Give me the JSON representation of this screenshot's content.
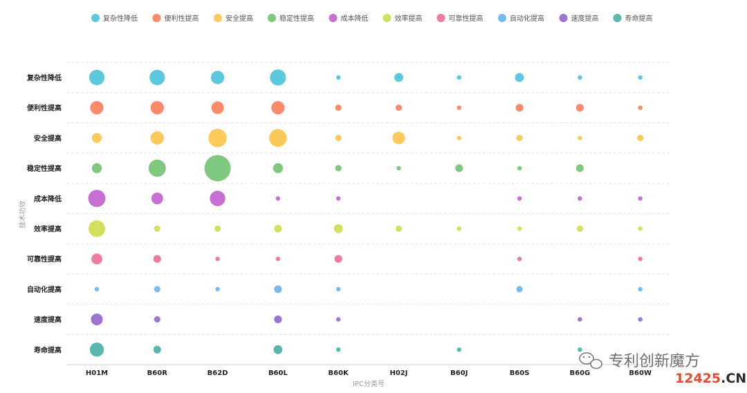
{
  "chart_data": {
    "type": "scatter",
    "variant": "bubble-matrix",
    "categories_x": [
      "H01M",
      "B60R",
      "B62D",
      "B60L",
      "B60K",
      "H02J",
      "B60J",
      "B60S",
      "B60G",
      "B60W"
    ],
    "categories_y": [
      "复杂性降低",
      "便利性提高",
      "安全提高",
      "稳定性提高",
      "成本降低",
      "效率提高",
      "可靠性提高",
      "自动化提高",
      "速度提高",
      "寿命提高"
    ],
    "xlabel": "IPC分类号",
    "ylabel": "技术功效",
    "legend_position": "top",
    "grid": "horizontal dashed",
    "series": [
      {
        "name": "复杂性降低",
        "color": "#5bc8dc",
        "values": [
          12,
          12,
          9,
          13,
          1,
          4,
          1,
          4,
          1,
          1
        ]
      },
      {
        "name": "便利性提高",
        "color": "#fc8b6b",
        "values": [
          9,
          9,
          8,
          9,
          2,
          2,
          1,
          3,
          3,
          1
        ]
      },
      {
        "name": "安全提高",
        "color": "#fcca5b",
        "values": [
          5,
          9,
          17,
          16,
          2,
          8,
          1,
          2,
          1,
          2
        ]
      },
      {
        "name": "稳定性提高",
        "color": "#7ec97e",
        "values": [
          5,
          15,
          35,
          5,
          2,
          1,
          3,
          1,
          3,
          0
        ]
      },
      {
        "name": "成本降低",
        "color": "#c76fd3",
        "values": [
          15,
          7,
          12,
          1,
          1,
          0,
          0,
          1,
          1,
          1
        ]
      },
      {
        "name": "效率提高",
        "color": "#d4e05c",
        "values": [
          14,
          2,
          2,
          3,
          4,
          2,
          1,
          1,
          2,
          1
        ]
      },
      {
        "name": "可靠性提高",
        "color": "#ef7b9f",
        "values": [
          6,
          3,
          1,
          1,
          3,
          0,
          0,
          1,
          0,
          1
        ]
      },
      {
        "name": "自动化提高",
        "color": "#76bbee",
        "values": [
          1,
          2,
          1,
          3,
          1,
          0,
          0,
          2,
          0,
          1
        ]
      },
      {
        "name": "速度提高",
        "color": "#9d74d3",
        "values": [
          7,
          2,
          0,
          3,
          1,
          0,
          0,
          0,
          1,
          1
        ]
      },
      {
        "name": "寿命提高",
        "color": "#59b7ad",
        "values": [
          10,
          3,
          0,
          4,
          1,
          0,
          1,
          0,
          1,
          0
        ]
      }
    ]
  },
  "watermark": {
    "brand": "专利创新魔方",
    "site_prefix": "12425",
    "site_suffix": ".CN"
  }
}
